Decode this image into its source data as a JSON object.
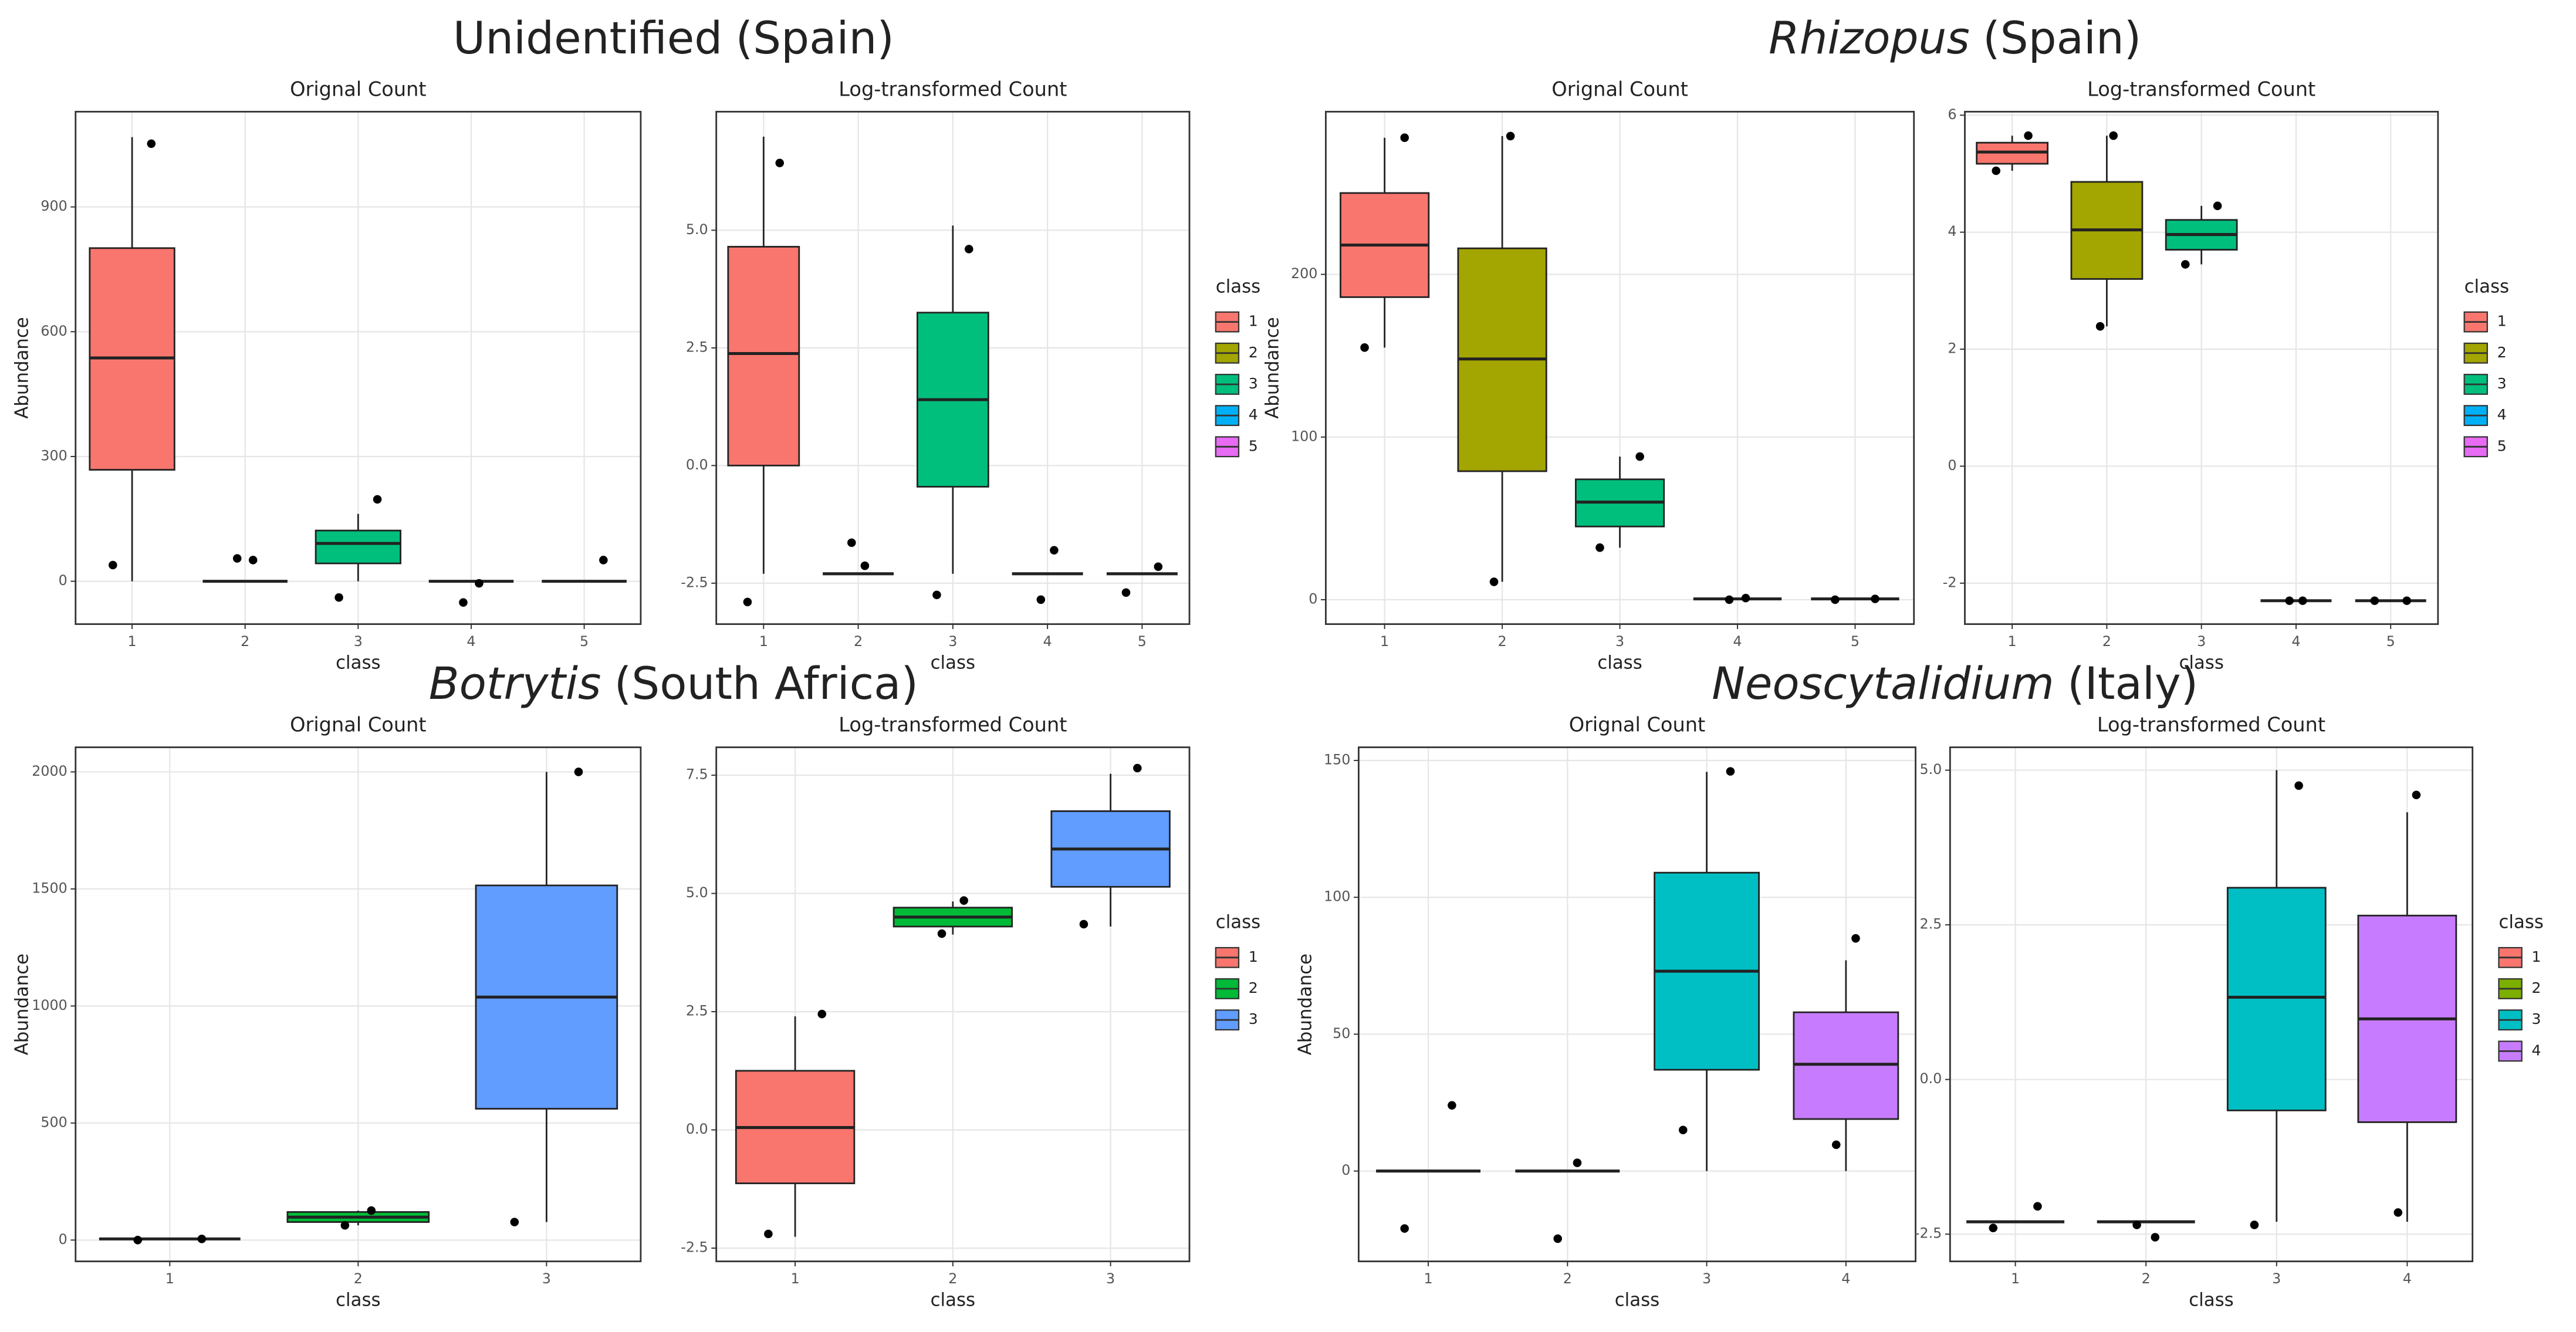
{
  "titles": [
    {
      "parts": [
        {
          "text": "Unidentified",
          "italic": false
        },
        {
          "text": "(Spain)",
          "italic": false
        }
      ]
    },
    {
      "parts": [
        {
          "text": "Rhizopus",
          "italic": true
        },
        {
          "text": "(Spain)",
          "italic": false
        }
      ]
    },
    {
      "parts": [
        {
          "text": "Botrytis",
          "italic": true
        },
        {
          "text": "(South Africa)",
          "italic": false
        }
      ]
    },
    {
      "parts": [
        {
          "text": "Neoscytalidium",
          "italic": true
        },
        {
          "text": "(Italy)",
          "italic": false
        }
      ]
    }
  ],
  "chart_data": [
    {
      "type": "box",
      "title": "Orignal Count",
      "xlabel": "class",
      "ylabel": "Abundance",
      "grid": true,
      "legend": false,
      "categories": [
        "1",
        "2",
        "3",
        "4",
        "5"
      ],
      "colors": [
        "#F8766D",
        "#A3A500",
        "#00BF7D",
        "#00B0F6",
        "#E76BF3"
      ],
      "ylim": [
        -103,
        1129
      ],
      "yticks": [
        0,
        300,
        600,
        900
      ],
      "boxes": [
        {
          "low": 0,
          "q1": 268,
          "median": 537,
          "q3": 801,
          "high": 1068,
          "points": [
            1052,
            39
          ]
        },
        {
          "low": 0,
          "q1": 0,
          "median": 0,
          "q3": 0,
          "high": 0,
          "points": [
            51,
            55
          ]
        },
        {
          "low": 0,
          "q1": 43,
          "median": 91,
          "q3": 122,
          "high": 162,
          "points": [
            197,
            -39
          ]
        },
        {
          "low": 0,
          "q1": 0,
          "median": 0,
          "q3": 0,
          "high": 0,
          "points": [
            -5,
            -51
          ]
        },
        {
          "low": 0,
          "q1": 0,
          "median": 0,
          "q3": 0,
          "high": 0,
          "points": [
            51
          ]
        }
      ]
    },
    {
      "type": "box",
      "title": "Log-transformed Count",
      "xlabel": "class",
      "grid": true,
      "legend": true,
      "legend_title": "class",
      "categories": [
        "1",
        "2",
        "3",
        "4",
        "5"
      ],
      "colors": [
        "#F8766D",
        "#A3A500",
        "#00BF7D",
        "#00B0F6",
        "#E76BF3"
      ],
      "ylim": [
        -3.37,
        7.52
      ],
      "yticks": [
        -2.5,
        {
          "value": 0,
          "label": "0.0"
        },
        2.5,
        {
          "value": 5,
          "label": "5.0"
        }
      ],
      "boxes": [
        {
          "low": -2.3,
          "q1": 0,
          "median": 2.38,
          "q3": 4.65,
          "high": 6.99,
          "points": [
            6.43,
            -2.9
          ]
        },
        {
          "low": -2.3,
          "q1": -2.3,
          "median": -2.3,
          "q3": -2.3,
          "high": -2.3,
          "points": [
            -2.13,
            -1.64
          ]
        },
        {
          "low": -2.3,
          "q1": -0.45,
          "median": 1.4,
          "q3": 3.25,
          "high": 5.1,
          "points": [
            4.6,
            -2.75
          ]
        },
        {
          "low": -2.3,
          "q1": -2.3,
          "median": -2.3,
          "q3": -2.3,
          "high": -2.3,
          "points": [
            -1.8,
            -2.85
          ]
        },
        {
          "low": -2.3,
          "q1": -2.3,
          "median": -2.3,
          "q3": -2.3,
          "high": -2.3,
          "points": [
            -2.15,
            -2.7
          ]
        }
      ]
    },
    {
      "type": "box",
      "title": "Orignal Count",
      "xlabel": "class",
      "ylabel": "Abundance",
      "grid": true,
      "legend": false,
      "categories": [
        "1",
        "2",
        "3",
        "4",
        "5"
      ],
      "colors": [
        "#F8766D",
        "#A3A500",
        "#00BF7D",
        "#00B0F6",
        "#E76BF3"
      ],
      "ylim": [
        -15,
        300
      ],
      "yticks": [
        0,
        100,
        200
      ],
      "boxes": [
        {
          "low": 155,
          "q1": 186,
          "median": 218,
          "q3": 250,
          "high": 284,
          "points": [
            284,
            155
          ]
        },
        {
          "low": 11,
          "q1": 79,
          "median": 148,
          "q3": 216,
          "high": 285,
          "points": [
            285,
            11
          ]
        },
        {
          "low": 32,
          "q1": 45,
          "median": 60,
          "q3": 74,
          "high": 88,
          "points": [
            88,
            32
          ]
        },
        {
          "low": 0.5,
          "q1": 0.5,
          "median": 0.5,
          "q3": 0.5,
          "high": 0.5,
          "points": [
            1,
            0
          ]
        },
        {
          "low": 0.5,
          "q1": 0.5,
          "median": 0.5,
          "q3": 0.5,
          "high": 0.5,
          "points": [
            0.5,
            0
          ]
        }
      ]
    },
    {
      "type": "box",
      "title": "Log-transformed Count",
      "xlabel": "class",
      "grid": true,
      "legend": true,
      "legend_title": "class",
      "categories": [
        "1",
        "2",
        "3",
        "4",
        "5"
      ],
      "colors": [
        "#F8766D",
        "#A3A500",
        "#00BF7D",
        "#00B0F6",
        "#E76BF3"
      ],
      "ylim": [
        -2.7,
        6.06
      ],
      "yticks": [
        -2,
        0,
        2,
        4,
        6
      ],
      "boxes": [
        {
          "low": 5.05,
          "q1": 5.17,
          "median": 5.37,
          "q3": 5.53,
          "high": 5.65,
          "points": [
            5.65,
            5.05
          ]
        },
        {
          "low": 2.39,
          "q1": 3.2,
          "median": 4.04,
          "q3": 4.86,
          "high": 5.65,
          "points": [
            5.65,
            2.39
          ]
        },
        {
          "low": 3.45,
          "q1": 3.7,
          "median": 3.96,
          "q3": 4.21,
          "high": 4.45,
          "points": [
            4.45,
            3.45
          ]
        },
        {
          "low": -2.3,
          "q1": -2.3,
          "median": -2.3,
          "q3": -2.3,
          "high": -2.3,
          "points": [
            -2.3,
            -2.3
          ]
        },
        {
          "low": -2.3,
          "q1": -2.3,
          "median": -2.3,
          "q3": -2.3,
          "high": -2.3,
          "points": [
            -2.3,
            -2.3
          ]
        }
      ]
    },
    {
      "type": "box",
      "title": "Orignal Count",
      "xlabel": "class",
      "ylabel": "Abundance",
      "grid": true,
      "legend": false,
      "categories": [
        "1",
        "2",
        "3"
      ],
      "colors": [
        "#F8766D",
        "#00BA38",
        "#619CFF"
      ],
      "ylim": [
        -91,
        2105
      ],
      "yticks": [
        0,
        500,
        1000,
        1500,
        2000
      ],
      "boxes": [
        {
          "low": 5,
          "q1": 5,
          "median": 5,
          "q3": 5,
          "high": 5,
          "points": [
            5,
            0
          ]
        },
        {
          "low": 63,
          "q1": 77,
          "median": 98,
          "q3": 120,
          "high": 126,
          "points": [
            126,
            63
          ]
        },
        {
          "low": 77,
          "q1": 561,
          "median": 1038,
          "q3": 1515,
          "high": 2000,
          "points": [
            2000,
            77
          ]
        }
      ]
    },
    {
      "type": "box",
      "title": "Log-transformed Count",
      "xlabel": "class",
      "grid": true,
      "legend": true,
      "legend_title": "class",
      "categories": [
        "1",
        "2",
        "3"
      ],
      "colors": [
        "#F8766D",
        "#00BA38",
        "#619CFF"
      ],
      "ylim": [
        -2.78,
        8.09
      ],
      "yticks": [
        -2.5,
        {
          "value": 0,
          "label": "0.0"
        },
        2.5,
        {
          "value": 5,
          "label": "5.0"
        },
        7.5
      ],
      "boxes": [
        {
          "low": -2.26,
          "q1": -1.13,
          "median": 0.05,
          "q3": 1.25,
          "high": 2.4,
          "points": [
            2.45,
            -2.2
          ]
        },
        {
          "low": 4.13,
          "q1": 4.3,
          "median": 4.5,
          "q3": 4.7,
          "high": 4.83,
          "points": [
            4.85,
            4.15
          ]
        },
        {
          "low": 4.3,
          "q1": 5.14,
          "median": 5.94,
          "q3": 6.74,
          "high": 7.53,
          "points": [
            7.65,
            4.35
          ]
        }
      ]
    },
    {
      "type": "box",
      "title": "Orignal Count",
      "xlabel": "class",
      "ylabel": "Abundance",
      "grid": true,
      "legend": false,
      "categories": [
        "1",
        "2",
        "3",
        "4"
      ],
      "colors": [
        "#F8766D",
        "#7CAE00",
        "#00BFC4",
        "#C77CFF"
      ],
      "ylim": [
        -33,
        154.8
      ],
      "yticks": [
        0,
        50,
        100,
        150
      ],
      "boxes": [
        {
          "low": 0,
          "q1": 0,
          "median": 0,
          "q3": 0,
          "high": 0,
          "points": [
            24,
            -21
          ]
        },
        {
          "low": 0,
          "q1": 0,
          "median": 0,
          "q3": 0,
          "high": 0,
          "points": [
            3,
            -24.7
          ]
        },
        {
          "low": 0,
          "q1": 37,
          "median": 73,
          "q3": 109,
          "high": 145.8,
          "points": [
            146,
            15
          ]
        },
        {
          "low": 0,
          "q1": 19,
          "median": 39,
          "q3": 58,
          "high": 77,
          "points": [
            85,
            9.6
          ]
        }
      ]
    },
    {
      "type": "box",
      "title": "Log-transformed Count",
      "xlabel": "class",
      "grid": true,
      "legend": true,
      "legend_title": "class",
      "categories": [
        "1",
        "2",
        "3",
        "4"
      ],
      "colors": [
        "#F8766D",
        "#7CAE00",
        "#00BFC4",
        "#C77CFF"
      ],
      "ylim": [
        -2.94,
        5.37
      ],
      "yticks": [
        -2.5,
        {
          "value": 0,
          "label": "0.0"
        },
        2.5,
        {
          "value": 5,
          "label": "5.0"
        }
      ],
      "boxes": [
        {
          "low": -2.3,
          "q1": -2.3,
          "median": -2.3,
          "q3": -2.3,
          "high": -2.3,
          "points": [
            -2.05,
            -2.4
          ]
        },
        {
          "low": -2.3,
          "q1": -2.3,
          "median": -2.3,
          "q3": -2.3,
          "high": -2.3,
          "points": [
            -2.55,
            -2.35
          ]
        },
        {
          "low": -2.3,
          "q1": -0.5,
          "median": 1.33,
          "q3": 3.1,
          "high": 5,
          "points": [
            4.75,
            -2.35
          ]
        },
        {
          "low": -2.3,
          "q1": -0.69,
          "median": 0.98,
          "q3": 2.65,
          "high": 4.32,
          "points": [
            4.6,
            -2.15
          ]
        }
      ]
    }
  ]
}
